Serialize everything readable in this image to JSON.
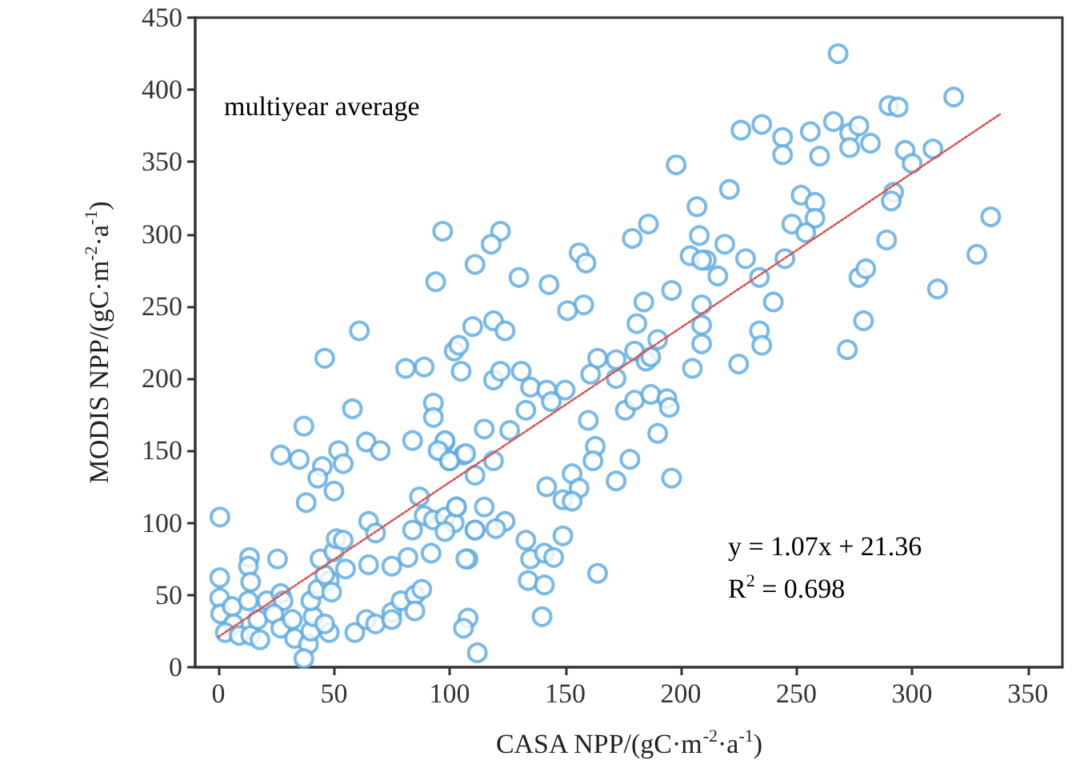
{
  "chart_data": {
    "type": "scatter",
    "xlabel": "CASA NPP/(gC·m$^{-2}$·a$^{-1}$)",
    "ylabel": "MODIS NPP/(gC·m$^{-2}$·a$^{-1}$)",
    "annotations": [
      "multiyear average",
      "y = 1.07x + 21.36",
      "R$^{2}$ = 0.698"
    ],
    "xlim": [
      -10,
      365
    ],
    "xticks": [
      0,
      50,
      100,
      150,
      200,
      250,
      300,
      350
    ],
    "ylim": [
      0,
      450
    ],
    "yticks": [
      0,
      50,
      100,
      150,
      200,
      250,
      300,
      350,
      400,
      450
    ],
    "grid": false,
    "marker": "circle",
    "series": [
      {
        "color": "#5aa9e0",
        "x": [
          58,
          37,
          0.7,
          27,
          35,
          52,
          54,
          45,
          43,
          50,
          38,
          64,
          70,
          84,
          93,
          93,
          98,
          13.5,
          13,
          14,
          25.6,
          0.6,
          0.6,
          1,
          6,
          13,
          6.6,
          3,
          9,
          14,
          18,
          17,
          21,
          27,
          28,
          24,
          27,
          32,
          33,
          39,
          37,
          40,
          41,
          40,
          43,
          48,
          49,
          46,
          44,
          50,
          51,
          54,
          55,
          48,
          46,
          59,
          64,
          68,
          65,
          75,
          82,
          75,
          75,
          79,
          85,
          88,
          85,
          92,
          108,
          108,
          106,
          112,
          65,
          68,
          84,
          89,
          87,
          93,
          98,
          102,
          103,
          98,
          111,
          115,
          111,
          106,
          100,
          96,
          115,
          198,
          97,
          122,
          118,
          111,
          94,
          130,
          143,
          156,
          159,
          179,
          186,
          207,
          208,
          204,
          211,
          216,
          219,
          196,
          184,
          181,
          158,
          151,
          110,
          119,
          124,
          102,
          104,
          105,
          89,
          119,
          122,
          131,
          135,
          142,
          144,
          150,
          133,
          126,
          98,
          95,
          100,
          107,
          119,
          161,
          164,
          172,
          172,
          180,
          185,
          187,
          190,
          205,
          176,
          180,
          187,
          194,
          195,
          190,
          160,
          163,
          162,
          178,
          172,
          196,
          153,
          156,
          142,
          149,
          153,
          103,
          124,
          120,
          111,
          133,
          135,
          141,
          145,
          149,
          134,
          141,
          140,
          164,
          107,
          268,
          318,
          290,
          294,
          226,
          235,
          244,
          244,
          256,
          266,
          273,
          277,
          273,
          282,
          260,
          297,
          309,
          300,
          221,
          252,
          258,
          258,
          292,
          291,
          248,
          254,
          209,
          228,
          245,
          234,
          240,
          209,
          209,
          209,
          234,
          235,
          225,
          279,
          272,
          277,
          280,
          289,
          311,
          328,
          334,
          61,
          46,
          81
        ],
        "values": [
          179,
          167,
          104,
          147,
          144,
          150,
          141,
          139,
          131,
          122,
          114,
          156,
          150,
          157,
          183,
          173,
          156,
          76,
          70,
          59,
          75,
          62,
          48,
          37,
          42,
          46,
          30,
          24,
          22,
          22,
          19,
          33,
          46,
          51,
          46,
          37,
          27,
          33,
          20,
          16,
          6,
          25,
          35,
          46,
          54,
          60,
          52,
          64,
          75,
          80,
          89,
          88,
          68,
          24,
          30,
          24,
          33,
          30,
          71,
          70,
          76,
          38,
          33,
          46,
          50,
          54,
          39,
          79,
          75,
          34,
          27,
          10,
          101,
          93,
          95,
          105,
          118,
          102,
          104,
          100,
          111,
          94,
          95,
          111,
          133,
          147,
          143,
          150,
          165,
          348,
          302,
          302,
          293,
          279,
          267,
          270,
          265,
          287,
          280,
          297,
          307,
          319,
          299,
          285,
          282,
          271,
          293,
          261,
          253,
          238,
          251,
          247,
          236,
          240,
          233,
          219,
          223,
          205,
          208,
          199,
          205,
          205,
          194,
          192,
          184,
          192,
          178,
          164,
          157,
          150,
          143,
          148,
          143,
          203,
          214,
          213,
          200,
          219,
          212,
          215,
          227,
          207,
          178,
          185,
          189,
          186,
          180,
          162,
          171,
          153,
          143,
          144,
          129,
          131,
          134,
          124,
          125,
          116,
          115,
          111,
          101,
          96,
          95,
          88,
          75,
          79,
          76,
          91,
          60,
          57,
          35,
          65,
          75,
          425,
          395,
          389,
          388,
          372,
          376,
          367,
          355,
          371,
          378,
          370,
          375,
          360,
          363,
          354,
          358,
          359,
          349,
          331,
          327,
          322,
          311,
          329,
          323,
          307,
          301,
          282,
          283,
          283,
          270,
          253,
          251,
          237,
          224,
          233,
          223,
          210,
          240,
          220,
          270,
          276,
          296,
          262,
          286,
          312,
          233,
          214,
          207
        ]
      },
      {
        "type": "line",
        "color": "#d9534f",
        "line_style": "dotted",
        "marker": "none",
        "x": [
          0,
          338
        ],
        "values": [
          21,
          383
        ]
      }
    ]
  }
}
